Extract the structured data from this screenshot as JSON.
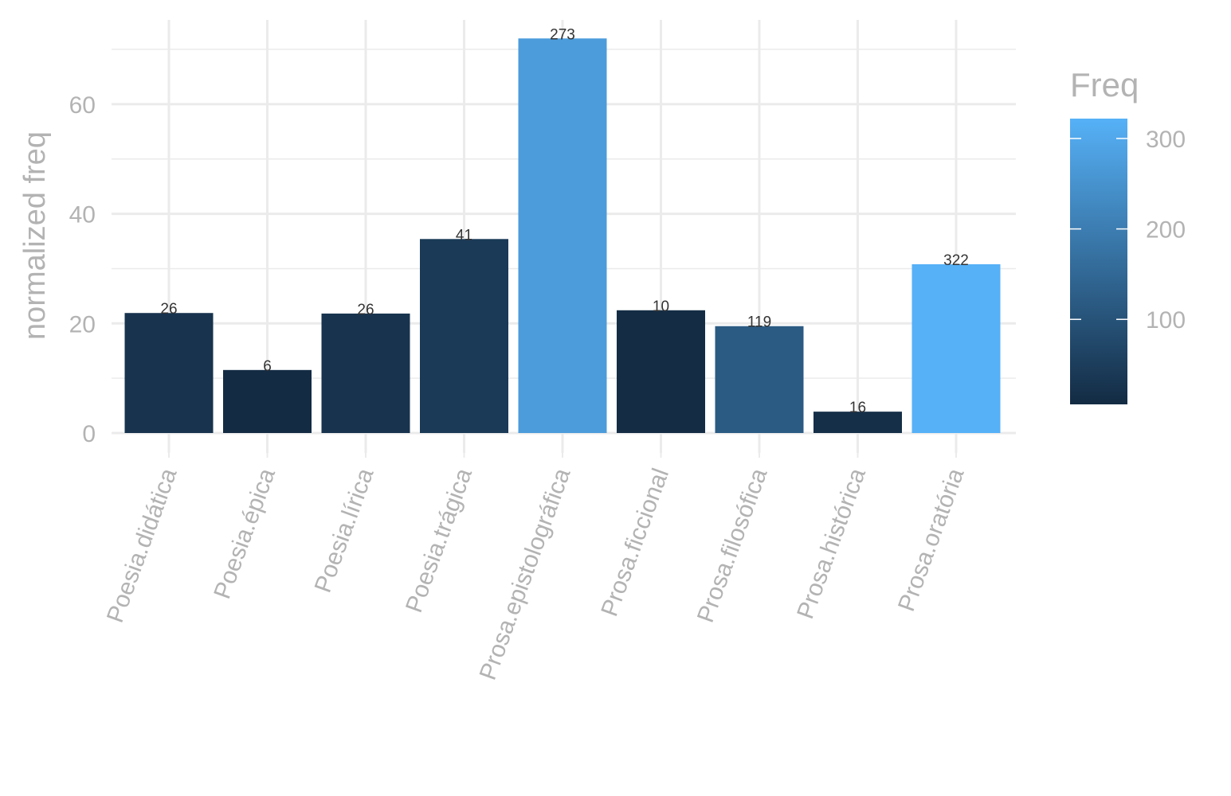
{
  "chart_data": {
    "type": "bar",
    "title": "",
    "xlabel": "",
    "ylabel": "normalized freq",
    "ylim": [
      0,
      76
    ],
    "yticks": [
      0,
      20,
      40,
      60
    ],
    "grid": true,
    "categories": [
      "Poesia.didática",
      "Poesia.épica",
      "Poesia.lírica",
      "Poesia.trágica",
      "Prosa.epistolográfica",
      "Prosa.ficcional",
      "Prosa.filosófica",
      "Prosa.histórica",
      "Prosa.oratória"
    ],
    "values": [
      21.9,
      11.5,
      21.8,
      35.4,
      72.0,
      22.4,
      19.5,
      3.9,
      30.8
    ],
    "fill_values": [
      26,
      6,
      26,
      41,
      273,
      10,
      119,
      16,
      322
    ],
    "bar_labels": [
      "26",
      "6",
      "26",
      "41",
      "273",
      "10",
      "119",
      "16",
      "322"
    ],
    "legend": {
      "title": "Freq",
      "placement": "right",
      "type": "colorbar",
      "range": [
        6,
        322
      ],
      "ticks": [
        100,
        200,
        300
      ],
      "low_color": "#132B43",
      "high_color": "#56B1F7"
    }
  }
}
